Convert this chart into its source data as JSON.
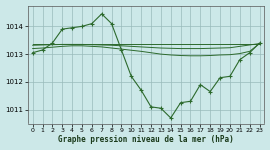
{
  "title": "Graphe pression niveau de la mer (hPa)",
  "bg_color": "#cce8e8",
  "plot_bg_color": "#cce8e8",
  "grid_color": "#99bbbb",
  "line_color": "#2d6a2d",
  "xlim": [
    -0.5,
    23.5
  ],
  "ylim": [
    1010.5,
    1014.75
  ],
  "yticks": [
    1011,
    1012,
    1013,
    1014
  ],
  "xticks": [
    0,
    1,
    2,
    3,
    4,
    5,
    6,
    7,
    8,
    9,
    10,
    11,
    12,
    13,
    14,
    15,
    16,
    17,
    18,
    19,
    20,
    21,
    22,
    23
  ],
  "main_line_x": [
    0,
    1,
    2,
    3,
    4,
    5,
    6,
    7,
    8,
    9,
    10,
    11,
    12,
    13,
    14,
    15,
    16,
    17,
    18,
    19,
    20,
    21,
    22,
    23
  ],
  "main_line_y": [
    1013.05,
    1013.15,
    1013.4,
    1013.9,
    1013.95,
    1014.0,
    1014.1,
    1014.45,
    1014.1,
    1013.15,
    1012.2,
    1011.7,
    1011.1,
    1011.05,
    1010.7,
    1011.25,
    1011.3,
    1011.9,
    1011.65,
    1012.15,
    1012.2,
    1012.8,
    1013.05,
    1013.4
  ],
  "ref_line1_x": [
    0,
    23
  ],
  "ref_line1_y": [
    1013.38,
    1013.38
  ],
  "ref_line2_x": [
    0,
    1,
    2,
    3,
    4,
    5,
    6,
    7,
    8,
    9,
    10,
    11,
    12,
    13,
    14,
    15,
    16,
    17,
    18,
    19,
    20,
    21,
    22,
    23
  ],
  "ref_line2_y": [
    1013.32,
    1013.33,
    1013.34,
    1013.35,
    1013.35,
    1013.35,
    1013.34,
    1013.33,
    1013.32,
    1013.3,
    1013.28,
    1013.26,
    1013.24,
    1013.22,
    1013.21,
    1013.2,
    1013.2,
    1013.2,
    1013.21,
    1013.22,
    1013.23,
    1013.28,
    1013.33,
    1013.38
  ],
  "ref_line3_x": [
    0,
    1,
    2,
    3,
    4,
    5,
    6,
    7,
    8,
    9,
    10,
    11,
    12,
    13,
    14,
    15,
    16,
    17,
    18,
    19,
    20,
    21,
    22,
    23
  ],
  "ref_line3_y": [
    1013.2,
    1013.22,
    1013.25,
    1013.28,
    1013.3,
    1013.3,
    1013.28,
    1013.26,
    1013.22,
    1013.18,
    1013.14,
    1013.1,
    1013.05,
    1013.0,
    1012.97,
    1012.95,
    1012.94,
    1012.94,
    1012.95,
    1012.97,
    1012.98,
    1013.02,
    1013.1,
    1013.38
  ]
}
